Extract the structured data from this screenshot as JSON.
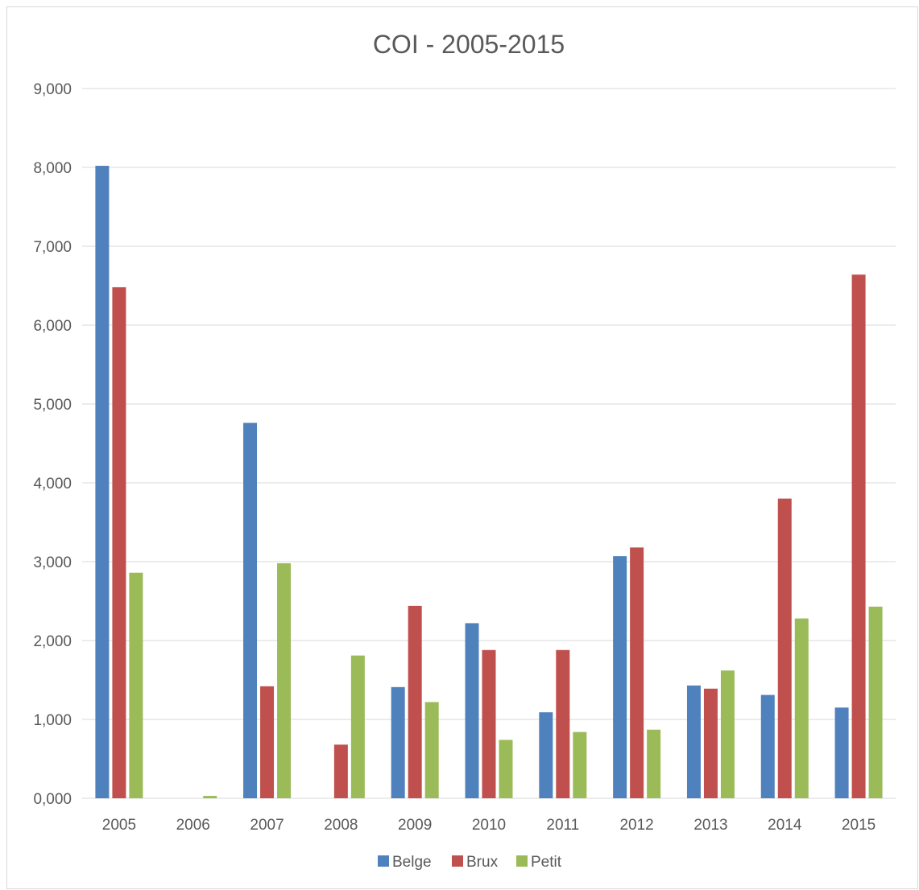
{
  "chart_data": {
    "type": "bar",
    "title": "COI - 2005-2015",
    "xlabel": "",
    "ylabel": "",
    "ylim": [
      0,
      9000
    ],
    "ytick_values": [
      0,
      1000,
      2000,
      3000,
      4000,
      5000,
      6000,
      7000,
      8000,
      9000
    ],
    "ytick_labels": [
      "0,000",
      "1,000",
      "2,000",
      "3,000",
      "4,000",
      "5,000",
      "6,000",
      "7,000",
      "8,000",
      "9,000"
    ],
    "grid": true,
    "legend_position": "bottom",
    "categories": [
      "2005",
      "2006",
      "2007",
      "2008",
      "2009",
      "2010",
      "2011",
      "2012",
      "2013",
      "2014",
      "2015"
    ],
    "series": [
      {
        "name": "Belge",
        "color": "#4f81bd",
        "values": [
          8020,
          0,
          4760,
          0,
          1410,
          2220,
          1090,
          3070,
          1430,
          1310,
          1150
        ]
      },
      {
        "name": "Brux",
        "color": "#c0504d",
        "values": [
          6480,
          0,
          1420,
          680,
          2440,
          1880,
          1880,
          3180,
          1390,
          3800,
          6640
        ]
      },
      {
        "name": "Petit",
        "color": "#9bbb59",
        "values": [
          2860,
          30,
          2980,
          1810,
          1220,
          740,
          840,
          870,
          1620,
          2280,
          2430
        ]
      }
    ]
  }
}
